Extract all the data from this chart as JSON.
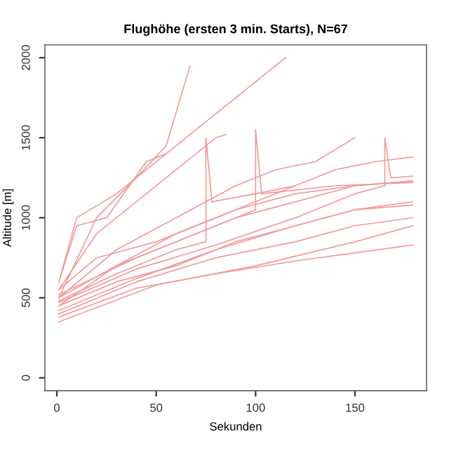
{
  "chart_data": {
    "type": "line",
    "title": "Flughöhe (ersten 3 min. Starts), N=67",
    "xlabel": "Sekunden",
    "ylabel": "Altitude [m]",
    "xlim": [
      -6,
      186
    ],
    "ylim": [
      -80,
      2080
    ],
    "xticks": [
      0,
      50,
      100,
      150
    ],
    "yticks": [
      0,
      500,
      1000,
      1500,
      2000
    ],
    "grid": false,
    "legend": false,
    "marker": "none",
    "line_style": "solid",
    "series": [
      {
        "color": "#f29a9a",
        "x": [
          1,
          20,
          40,
          55,
          67
        ],
        "values": [
          500,
          1000,
          1250,
          1450,
          1950
        ]
      },
      {
        "color": "#f29a9a",
        "x": [
          1,
          10,
          30,
          50,
          70,
          90,
          105,
          115
        ],
        "values": [
          600,
          1000,
          1150,
          1350,
          1550,
          1750,
          1900,
          2000
        ]
      },
      {
        "color": "#f29a9a",
        "x": [
          1,
          20,
          40,
          60,
          80,
          85
        ],
        "values": [
          550,
          900,
          1100,
          1300,
          1500,
          1520
        ]
      },
      {
        "color": "#f29a9a",
        "x": [
          1,
          30,
          60,
          90,
          110,
          130,
          150
        ],
        "values": [
          500,
          800,
          1000,
          1200,
          1300,
          1350,
          1500
        ]
      },
      {
        "color": "#f29a9a",
        "x": [
          1,
          30,
          60,
          90,
          120,
          150,
          179
        ],
        "values": [
          450,
          700,
          850,
          1000,
          1100,
          1200,
          1230
        ]
      },
      {
        "color": "#f29a9a",
        "x": [
          1,
          40,
          80,
          120,
          150,
          179
        ],
        "values": [
          400,
          600,
          750,
          850,
          950,
          1000
        ]
      },
      {
        "color": "#f29a9a",
        "x": [
          1,
          40,
          80,
          120,
          179
        ],
        "values": [
          380,
          560,
          650,
          730,
          830
        ]
      },
      {
        "color": "#f29a9a",
        "x": [
          1,
          30,
          60,
          90,
          120,
          150,
          179
        ],
        "values": [
          450,
          600,
          700,
          850,
          950,
          1050,
          1100
        ]
      },
      {
        "color": "#f29a9a",
        "x": [
          1,
          30,
          60,
          90,
          120,
          150,
          179
        ],
        "values": [
          500,
          700,
          900,
          1050,
          1150,
          1200,
          1230
        ]
      },
      {
        "color": "#f29a9a",
        "x": [
          1,
          20,
          50,
          80,
          100,
          120,
          140,
          160,
          179
        ],
        "values": [
          550,
          750,
          850,
          1000,
          1100,
          1200,
          1300,
          1350,
          1380
        ]
      },
      {
        "color": "#f29a9a",
        "x": [
          1,
          40,
          80,
          120,
          150,
          179
        ],
        "values": [
          420,
          620,
          800,
          950,
          1050,
          1080
        ]
      },
      {
        "color": "#f29a9a",
        "x": [
          1,
          30,
          60,
          75,
          75,
          78,
          100,
          120
        ],
        "values": [
          480,
          650,
          800,
          850,
          1500,
          1100,
          1150,
          1200
        ]
      },
      {
        "color": "#f29a9a",
        "x": [
          1,
          50,
          100,
          150,
          179
        ],
        "values": [
          350,
          580,
          700,
          850,
          950
        ]
      },
      {
        "color": "#f29a9a",
        "x": [
          1,
          10,
          25,
          45,
          55
        ],
        "values": [
          600,
          950,
          1000,
          1350,
          1400
        ]
      },
      {
        "color": "#f29a9a",
        "x": [
          1,
          40,
          80,
          100,
          100,
          103,
          140,
          179
        ],
        "values": [
          520,
          750,
          950,
          1050,
          1550,
          1150,
          1200,
          1220
        ]
      },
      {
        "color": "#f29a9a",
        "x": [
          1,
          40,
          80,
          120,
          150,
          165,
          165,
          168,
          179
        ],
        "values": [
          470,
          680,
          830,
          1000,
          1150,
          1200,
          1500,
          1250,
          1260
        ]
      }
    ]
  }
}
